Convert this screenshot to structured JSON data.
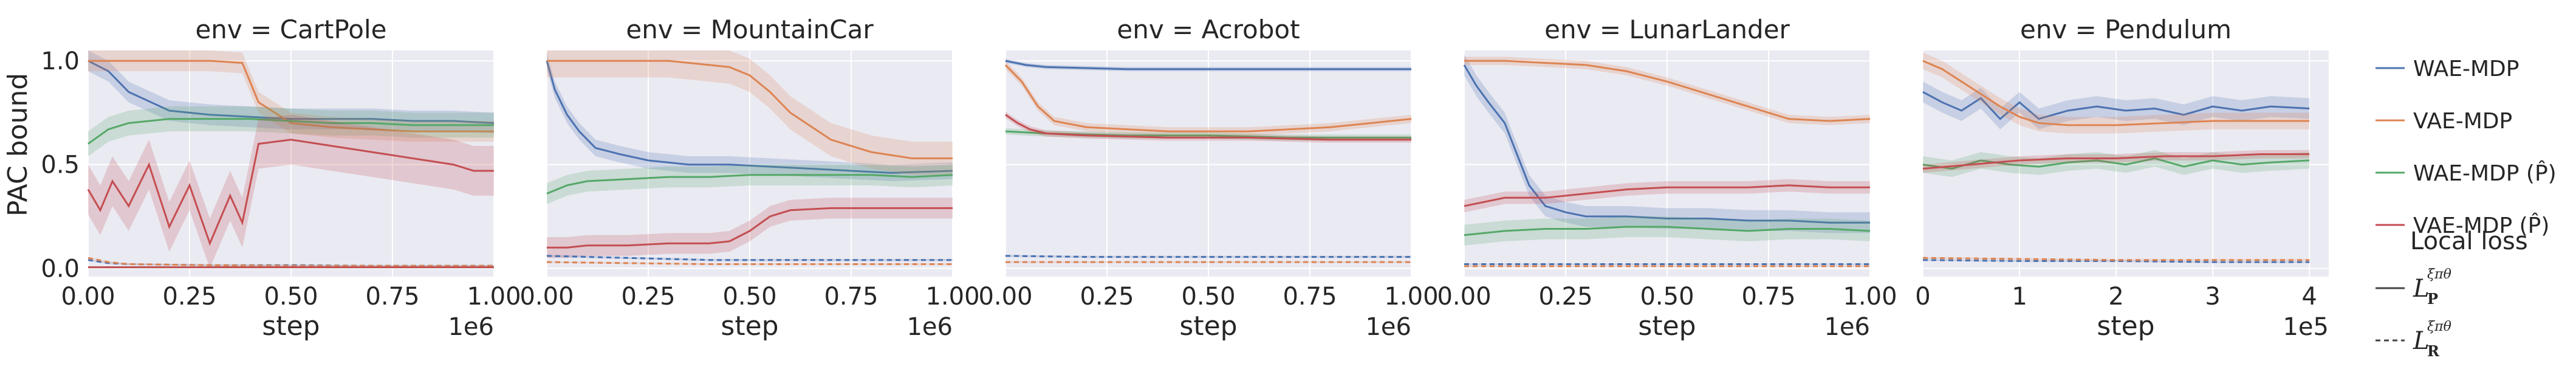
{
  "figure": {
    "ylabel": "PAC bound",
    "legend": {
      "series": [
        {
          "label": "WAE-MDP",
          "color": "#4c72b0"
        },
        {
          "label": "VAE-MDP",
          "color": "#dd8452"
        },
        {
          "label": "WAE-MDP (P̂)",
          "color": "#55a868"
        },
        {
          "label": "VAE-MDP (P̂)",
          "color": "#c44e52"
        }
      ],
      "style_title": "Local loss",
      "styles": [
        {
          "main": "L",
          "sub": "P",
          "sup": "ξπθ",
          "dash": "solid"
        },
        {
          "main": "L",
          "sub": "R",
          "sup": "ξπθ",
          "dash": "dashed"
        }
      ]
    }
  },
  "chart_data": [
    {
      "type": "line",
      "title": "env = CartPole",
      "xlabel": "step",
      "ylabel": "PAC bound",
      "x_offset_label": "1e6",
      "xlim": [
        0,
        1.0
      ],
      "ylim": [
        -0.04,
        1.05
      ],
      "xticks": [
        0.0,
        0.25,
        0.5,
        0.75,
        1.0
      ],
      "xtick_labels": [
        "0.00",
        "0.25",
        "0.50",
        "0.75",
        "1.00"
      ],
      "yticks": [
        0.0,
        0.5,
        1.0
      ],
      "ytick_labels": [
        "0.0",
        "0.5",
        "1.0"
      ],
      "series": [
        {
          "name": "WAE-MDP",
          "loss": "P",
          "x": [
            0,
            0.05,
            0.1,
            0.2,
            0.3,
            0.4,
            0.5,
            0.6,
            0.7,
            0.8,
            0.9,
            1.0
          ],
          "y": [
            1.0,
            0.95,
            0.85,
            0.76,
            0.74,
            0.73,
            0.72,
            0.72,
            0.72,
            0.71,
            0.71,
            0.7
          ],
          "band": 0.05
        },
        {
          "name": "VAE-MDP",
          "loss": "P",
          "x": [
            0,
            0.05,
            0.1,
            0.2,
            0.3,
            0.38,
            0.42,
            0.5,
            0.6,
            0.7,
            0.8,
            0.9,
            1.0
          ],
          "y": [
            1.0,
            1.0,
            1.0,
            1.0,
            1.0,
            0.99,
            0.8,
            0.7,
            0.68,
            0.67,
            0.66,
            0.66,
            0.66
          ],
          "band": 0.05
        },
        {
          "name": "WAE-MDP (P̂)",
          "loss": "P",
          "x": [
            0,
            0.05,
            0.1,
            0.2,
            0.3,
            0.4,
            0.5,
            0.6,
            0.7,
            0.8,
            0.9,
            1.0
          ],
          "y": [
            0.6,
            0.67,
            0.7,
            0.72,
            0.72,
            0.72,
            0.71,
            0.7,
            0.7,
            0.69,
            0.69,
            0.69
          ],
          "band": 0.06
        },
        {
          "name": "VAE-MDP (P̂)",
          "loss": "P",
          "x": [
            0,
            0.03,
            0.06,
            0.1,
            0.15,
            0.2,
            0.25,
            0.3,
            0.35,
            0.38,
            0.42,
            0.5,
            0.6,
            0.7,
            0.8,
            0.9,
            0.95,
            1.0
          ],
          "y": [
            0.38,
            0.28,
            0.42,
            0.3,
            0.5,
            0.2,
            0.4,
            0.12,
            0.35,
            0.22,
            0.6,
            0.62,
            0.59,
            0.56,
            0.53,
            0.5,
            0.47,
            0.47
          ],
          "band": 0.12
        },
        {
          "name": "WAE-MDP",
          "loss": "R",
          "x": [
            0,
            0.05,
            0.1,
            0.3,
            0.5,
            0.7,
            1.0
          ],
          "y": [
            0.04,
            0.025,
            0.02,
            0.015,
            0.015,
            0.012,
            0.012
          ],
          "band": 0.004
        },
        {
          "name": "VAE-MDP",
          "loss": "R",
          "x": [
            0,
            0.05,
            0.1,
            0.3,
            0.5,
            0.7,
            1.0
          ],
          "y": [
            0.05,
            0.03,
            0.02,
            0.015,
            0.012,
            0.012,
            0.012
          ],
          "band": 0.004
        },
        {
          "name": "WAE-MDP (P̂)",
          "loss": "P",
          "x": [
            0,
            0.1,
            0.3,
            0.5,
            0.7,
            1.0
          ],
          "y": [
            0.005,
            0.005,
            0.005,
            0.005,
            0.005,
            0.005
          ],
          "band": 0.003
        },
        {
          "name": "VAE-MDP (P̂)",
          "loss": "P",
          "x": [
            0,
            0.1,
            0.3,
            0.5,
            0.7,
            1.0
          ],
          "y": [
            0.005,
            0.005,
            0.005,
            0.005,
            0.005,
            0.005
          ],
          "band": 0.003
        }
      ]
    },
    {
      "type": "line",
      "title": "env = MountainCar",
      "xlabel": "step",
      "x_offset_label": "1e6",
      "xlim": [
        0,
        1.0
      ],
      "ylim": [
        -0.04,
        1.05
      ],
      "xticks": [
        0.0,
        0.25,
        0.5,
        0.75,
        1.0
      ],
      "xtick_labels": [
        "0.00",
        "0.25",
        "0.50",
        "0.75",
        "1.00"
      ],
      "series": [
        {
          "name": "WAE-MDP",
          "loss": "P",
          "x": [
            0,
            0.02,
            0.05,
            0.08,
            0.12,
            0.18,
            0.25,
            0.35,
            0.45,
            0.55,
            0.65,
            0.75,
            0.85,
            1.0
          ],
          "y": [
            1.0,
            0.86,
            0.74,
            0.66,
            0.58,
            0.55,
            0.52,
            0.5,
            0.5,
            0.49,
            0.48,
            0.47,
            0.46,
            0.47
          ],
          "band": 0.04
        },
        {
          "name": "VAE-MDP",
          "loss": "P",
          "x": [
            0,
            0.1,
            0.2,
            0.3,
            0.4,
            0.45,
            0.5,
            0.55,
            0.6,
            0.7,
            0.8,
            0.9,
            1.0
          ],
          "y": [
            1.0,
            1.0,
            1.0,
            1.0,
            0.98,
            0.97,
            0.93,
            0.85,
            0.75,
            0.62,
            0.56,
            0.53,
            0.53
          ],
          "band": 0.08
        },
        {
          "name": "WAE-MDP (P̂)",
          "loss": "P",
          "x": [
            0,
            0.05,
            0.1,
            0.2,
            0.3,
            0.4,
            0.5,
            0.6,
            0.7,
            0.8,
            0.9,
            1.0
          ],
          "y": [
            0.36,
            0.4,
            0.42,
            0.43,
            0.44,
            0.44,
            0.45,
            0.45,
            0.45,
            0.45,
            0.44,
            0.45
          ],
          "band": 0.05
        },
        {
          "name": "VAE-MDP (P̂)",
          "loss": "P",
          "x": [
            0,
            0.05,
            0.1,
            0.2,
            0.3,
            0.4,
            0.45,
            0.5,
            0.55,
            0.6,
            0.7,
            0.8,
            0.9,
            1.0
          ],
          "y": [
            0.1,
            0.1,
            0.11,
            0.11,
            0.12,
            0.12,
            0.13,
            0.18,
            0.25,
            0.28,
            0.29,
            0.29,
            0.29,
            0.29
          ],
          "band": 0.05
        },
        {
          "name": "WAE-MDP",
          "loss": "R",
          "x": [
            0,
            0.2,
            0.4,
            0.6,
            0.8,
            1.0
          ],
          "y": [
            0.06,
            0.05,
            0.04,
            0.04,
            0.04,
            0.04
          ],
          "band": 0.005
        },
        {
          "name": "VAE-MDP",
          "loss": "R",
          "x": [
            0,
            0.2,
            0.4,
            0.6,
            0.8,
            1.0
          ],
          "y": [
            0.03,
            0.025,
            0.02,
            0.02,
            0.02,
            0.02
          ],
          "band": 0.004
        }
      ]
    },
    {
      "type": "line",
      "title": "env = Acrobot",
      "xlabel": "step",
      "x_offset_label": "1e6",
      "xlim": [
        0,
        1.0
      ],
      "ylim": [
        -0.04,
        1.05
      ],
      "xticks": [
        0.0,
        0.25,
        0.5,
        0.75,
        1.0
      ],
      "xtick_labels": [
        "0.00",
        "0.25",
        "0.50",
        "0.75",
        "1.00"
      ],
      "series": [
        {
          "name": "WAE-MDP",
          "loss": "P",
          "x": [
            0,
            0.05,
            0.1,
            0.3,
            0.5,
            0.7,
            0.9,
            1.0
          ],
          "y": [
            1.0,
            0.98,
            0.97,
            0.96,
            0.96,
            0.96,
            0.96,
            0.96
          ],
          "band": 0.01
        },
        {
          "name": "VAE-MDP",
          "loss": "P",
          "x": [
            0,
            0.04,
            0.08,
            0.12,
            0.2,
            0.3,
            0.4,
            0.5,
            0.6,
            0.7,
            0.8,
            0.9,
            1.0
          ],
          "y": [
            0.98,
            0.9,
            0.78,
            0.71,
            0.68,
            0.67,
            0.66,
            0.66,
            0.66,
            0.67,
            0.68,
            0.7,
            0.72
          ],
          "band": 0.02
        },
        {
          "name": "WAE-MDP (P̂)",
          "loss": "P",
          "x": [
            0,
            0.1,
            0.3,
            0.5,
            0.7,
            0.9,
            1.0
          ],
          "y": [
            0.66,
            0.65,
            0.64,
            0.64,
            0.63,
            0.63,
            0.63
          ],
          "band": 0.015
        },
        {
          "name": "VAE-MDP (P̂)",
          "loss": "P",
          "x": [
            0,
            0.03,
            0.06,
            0.1,
            0.2,
            0.4,
            0.6,
            0.8,
            1.0
          ],
          "y": [
            0.74,
            0.7,
            0.67,
            0.65,
            0.64,
            0.63,
            0.63,
            0.62,
            0.62
          ],
          "band": 0.015
        },
        {
          "name": "WAE-MDP",
          "loss": "R",
          "x": [
            0,
            0.2,
            0.4,
            0.6,
            0.8,
            1.0
          ],
          "y": [
            0.06,
            0.055,
            0.055,
            0.055,
            0.055,
            0.055
          ],
          "band": 0.005
        },
        {
          "name": "VAE-MDP",
          "loss": "R",
          "x": [
            0,
            0.2,
            0.4,
            0.6,
            0.8,
            1.0
          ],
          "y": [
            0.03,
            0.03,
            0.03,
            0.03,
            0.03,
            0.03
          ],
          "band": 0.004
        }
      ]
    },
    {
      "type": "line",
      "title": "env = LunarLander",
      "xlabel": "step",
      "x_offset_label": "1e6",
      "xlim": [
        0,
        1.0
      ],
      "ylim": [
        -0.04,
        1.05
      ],
      "xticks": [
        0.0,
        0.25,
        0.5,
        0.75,
        1.0
      ],
      "xtick_labels": [
        "0.00",
        "0.25",
        "0.50",
        "0.75",
        "1.00"
      ],
      "series": [
        {
          "name": "WAE-MDP",
          "loss": "P",
          "x": [
            0,
            0.03,
            0.06,
            0.1,
            0.13,
            0.16,
            0.2,
            0.25,
            0.3,
            0.4,
            0.5,
            0.6,
            0.7,
            0.8,
            0.9,
            1.0
          ],
          "y": [
            0.98,
            0.88,
            0.8,
            0.7,
            0.55,
            0.4,
            0.3,
            0.27,
            0.25,
            0.25,
            0.24,
            0.24,
            0.23,
            0.23,
            0.22,
            0.22
          ],
          "band": 0.05
        },
        {
          "name": "VAE-MDP",
          "loss": "P",
          "x": [
            0,
            0.1,
            0.2,
            0.3,
            0.4,
            0.5,
            0.6,
            0.7,
            0.8,
            0.9,
            1.0
          ],
          "y": [
            1.0,
            1.0,
            0.99,
            0.98,
            0.95,
            0.9,
            0.84,
            0.78,
            0.72,
            0.71,
            0.72
          ],
          "band": 0.02
        },
        {
          "name": "WAE-MDP (P̂)",
          "loss": "P",
          "x": [
            0,
            0.1,
            0.2,
            0.3,
            0.4,
            0.5,
            0.6,
            0.7,
            0.8,
            0.9,
            1.0
          ],
          "y": [
            0.16,
            0.18,
            0.19,
            0.19,
            0.2,
            0.2,
            0.19,
            0.18,
            0.19,
            0.19,
            0.18
          ],
          "band": 0.05
        },
        {
          "name": "VAE-MDP (P̂)",
          "loss": "P",
          "x": [
            0,
            0.05,
            0.1,
            0.2,
            0.3,
            0.4,
            0.5,
            0.6,
            0.7,
            0.8,
            0.9,
            1.0
          ],
          "y": [
            0.3,
            0.32,
            0.34,
            0.34,
            0.36,
            0.38,
            0.39,
            0.39,
            0.39,
            0.4,
            0.39,
            0.39
          ],
          "band": 0.03
        },
        {
          "name": "WAE-MDP",
          "loss": "R",
          "x": [
            0,
            0.2,
            0.4,
            0.6,
            0.8,
            1.0
          ],
          "y": [
            0.02,
            0.02,
            0.02,
            0.02,
            0.02,
            0.02
          ],
          "band": 0.003
        },
        {
          "name": "VAE-MDP",
          "loss": "R",
          "x": [
            0,
            0.2,
            0.4,
            0.6,
            0.8,
            1.0
          ],
          "y": [
            0.01,
            0.01,
            0.01,
            0.01,
            0.01,
            0.01
          ],
          "band": 0.003
        }
      ]
    },
    {
      "type": "line",
      "title": "env = Pendulum",
      "xlabel": "step",
      "x_offset_label": "1e5",
      "xlim": [
        0,
        4.2
      ],
      "ylim": [
        -0.04,
        1.05
      ],
      "xticks": [
        0,
        1,
        2,
        3,
        4
      ],
      "xtick_labels": [
        "0",
        "1",
        "2",
        "3",
        "4"
      ],
      "series": [
        {
          "name": "WAE-MDP",
          "loss": "P",
          "x": [
            0,
            0.2,
            0.4,
            0.6,
            0.8,
            1.0,
            1.2,
            1.5,
            1.8,
            2.1,
            2.4,
            2.7,
            3.0,
            3.3,
            3.6,
            4.0
          ],
          "y": [
            0.85,
            0.8,
            0.76,
            0.82,
            0.72,
            0.8,
            0.72,
            0.76,
            0.78,
            0.76,
            0.77,
            0.74,
            0.78,
            0.76,
            0.78,
            0.77
          ],
          "band": 0.05
        },
        {
          "name": "VAE-MDP",
          "loss": "P",
          "x": [
            0,
            0.2,
            0.4,
            0.6,
            0.8,
            1.0,
            1.2,
            1.5,
            2.0,
            2.5,
            3.0,
            3.5,
            4.0
          ],
          "y": [
            1.0,
            0.96,
            0.9,
            0.84,
            0.78,
            0.73,
            0.7,
            0.69,
            0.69,
            0.7,
            0.71,
            0.71,
            0.71
          ],
          "band": 0.04
        },
        {
          "name": "WAE-MDP (P̂)",
          "loss": "P",
          "x": [
            0,
            0.3,
            0.6,
            0.9,
            1.2,
            1.5,
            1.8,
            2.1,
            2.4,
            2.7,
            3.0,
            3.3,
            3.6,
            4.0
          ],
          "y": [
            0.5,
            0.48,
            0.52,
            0.5,
            0.49,
            0.51,
            0.52,
            0.5,
            0.53,
            0.49,
            0.52,
            0.5,
            0.51,
            0.52
          ],
          "band": 0.04
        },
        {
          "name": "VAE-MDP (P̂)",
          "loss": "P",
          "x": [
            0,
            0.5,
            1.0,
            1.5,
            2.0,
            2.5,
            3.0,
            3.5,
            4.0
          ],
          "y": [
            0.48,
            0.5,
            0.52,
            0.53,
            0.53,
            0.54,
            0.54,
            0.55,
            0.55
          ],
          "band": 0.02
        },
        {
          "name": "WAE-MDP",
          "loss": "R",
          "x": [
            0,
            1,
            2,
            3,
            4
          ],
          "y": [
            0.04,
            0.035,
            0.035,
            0.03,
            0.03
          ],
          "band": 0.004
        },
        {
          "name": "VAE-MDP",
          "loss": "R",
          "x": [
            0,
            1,
            2,
            3,
            4
          ],
          "y": [
            0.05,
            0.045,
            0.04,
            0.04,
            0.04
          ],
          "band": 0.004
        }
      ]
    }
  ]
}
